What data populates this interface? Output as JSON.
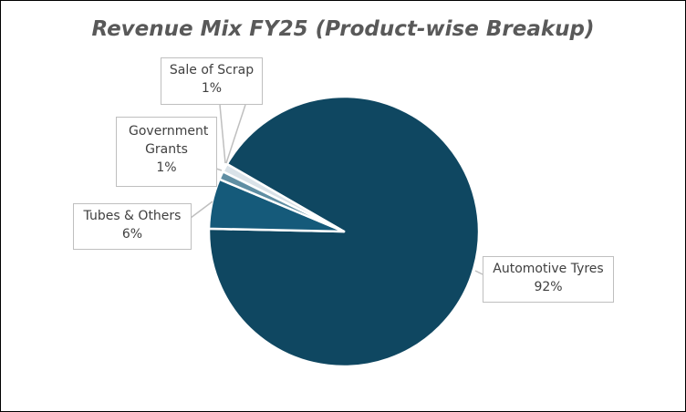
{
  "chart_data": {
    "type": "pie",
    "title": "Revenue Mix FY25 (Product-wise Breakup)",
    "categories": [
      "Automotive Tyres",
      "Tubes & Others",
      "Government Grants",
      "Sale of Scrap"
    ],
    "values": [
      92,
      6,
      1,
      1
    ],
    "data_labels": [
      "92%",
      "6%",
      "1%",
      "1%"
    ],
    "colors": [
      "#0f4761",
      "#155a7a",
      "#5f8ea3",
      "#d9e2e8"
    ],
    "legend": "none"
  }
}
